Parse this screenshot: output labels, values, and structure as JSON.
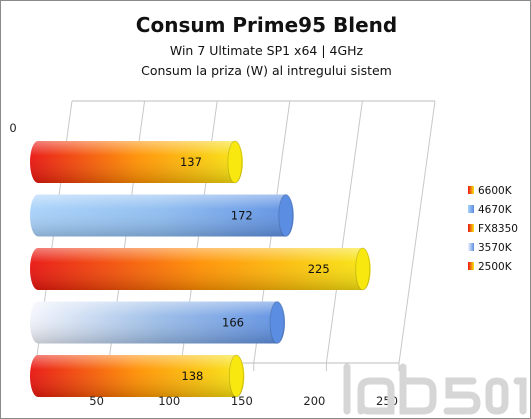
{
  "chart_data": {
    "type": "bar",
    "orientation": "horizontal",
    "title": "Consum Prime95 Blend",
    "subtitle_lines": [
      "Win 7 Ultimate SP1 x64  | 4GHz",
      "Consum la priza (W) al intregului sistem"
    ],
    "categories": [
      "6600K",
      "4670K",
      "FX8350",
      "3570K",
      "2500K"
    ],
    "values": [
      137,
      172,
      225,
      166,
      138
    ],
    "value_labels": [
      "137",
      "172",
      "225",
      "166",
      "138"
    ],
    "bar_colors": [
      [
        "#e8130f",
        "#ff8f00",
        "#f8e810"
      ],
      [
        "#a8d2fa",
        "#8dbcf0",
        "#5b8ee2"
      ],
      [
        "#e8130f",
        "#ff8f00",
        "#f8e810"
      ],
      [
        "#f2f4fb",
        "#9bbde8",
        "#5b8ee2"
      ],
      [
        "#e8130f",
        "#ff8f00",
        "#f8e810"
      ]
    ],
    "xlim": [
      0,
      250
    ],
    "xticks": [
      0,
      50,
      100,
      150,
      200,
      250
    ],
    "grid": true,
    "legend_placement": "right",
    "legend_order": [
      "6600K",
      "4670K",
      "FX8350",
      "3570K",
      "2500K"
    ],
    "three_d": true
  },
  "watermark_text": "lab501"
}
